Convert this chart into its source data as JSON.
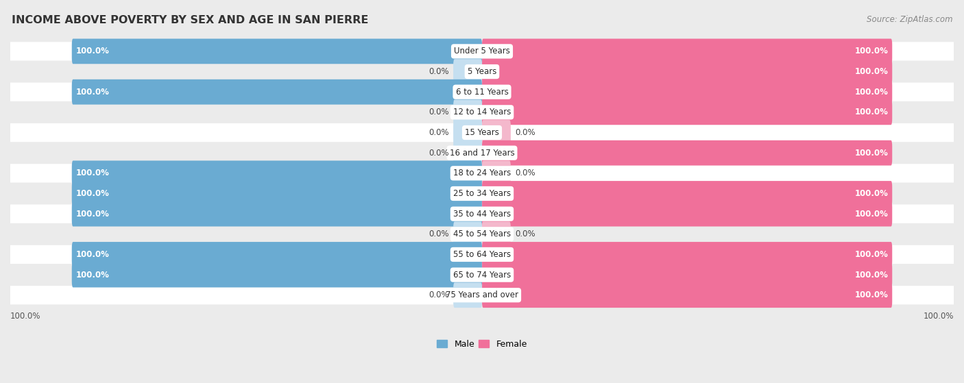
{
  "title": "INCOME ABOVE POVERTY BY SEX AND AGE IN SAN PIERRE",
  "source": "Source: ZipAtlas.com",
  "categories": [
    "Under 5 Years",
    "5 Years",
    "6 to 11 Years",
    "12 to 14 Years",
    "15 Years",
    "16 and 17 Years",
    "18 to 24 Years",
    "25 to 34 Years",
    "35 to 44 Years",
    "45 to 54 Years",
    "55 to 64 Years",
    "65 to 74 Years",
    "75 Years and over"
  ],
  "male": [
    100.0,
    0.0,
    100.0,
    0.0,
    0.0,
    0.0,
    100.0,
    100.0,
    100.0,
    0.0,
    100.0,
    100.0,
    0.0
  ],
  "female": [
    100.0,
    100.0,
    100.0,
    100.0,
    0.0,
    100.0,
    0.0,
    100.0,
    100.0,
    0.0,
    100.0,
    100.0,
    100.0
  ],
  "male_color": "#6aabd2",
  "male_color_light": "#c5dff0",
  "female_color": "#f0709a",
  "female_color_light": "#f4b8cc",
  "row_color_odd": "#ffffff",
  "row_color_even": "#ebebeb",
  "bg_color": "#ebebeb",
  "title_fontsize": 11.5,
  "label_fontsize": 8.5,
  "source_fontsize": 8.5,
  "legend_fontsize": 9,
  "max_val": 100.0,
  "stub_size": 7.0
}
